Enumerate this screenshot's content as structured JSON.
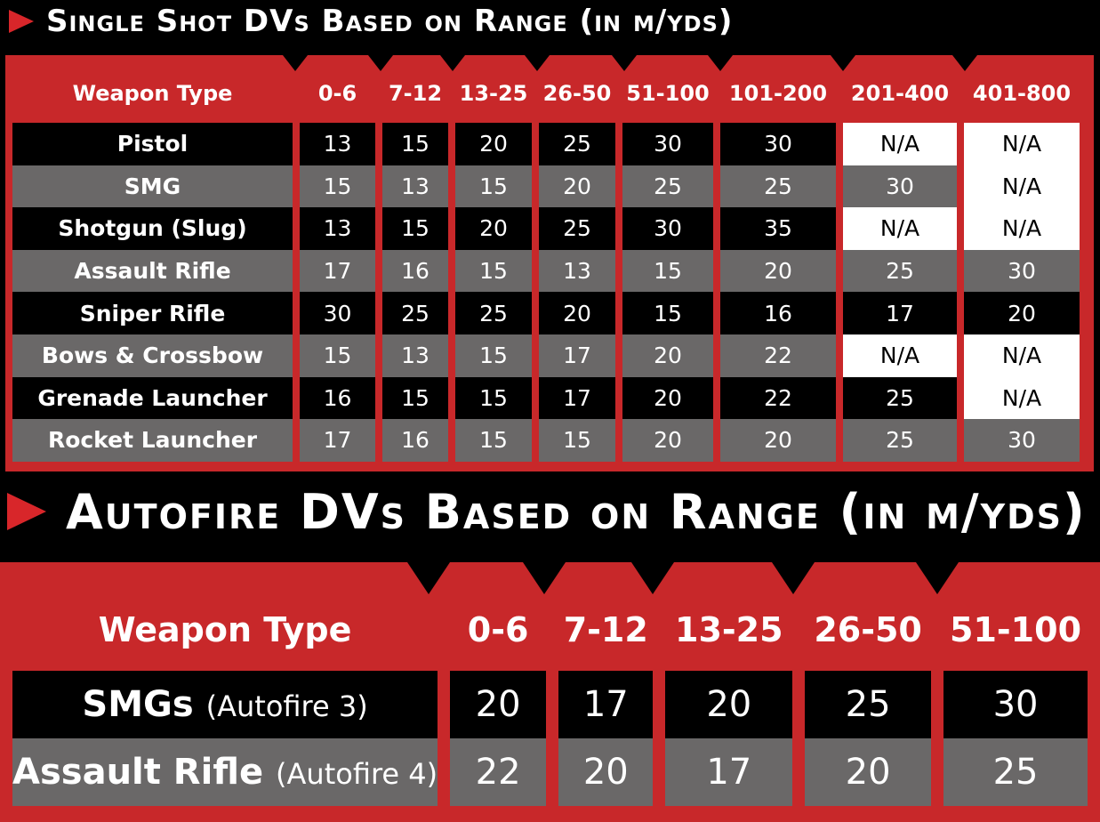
{
  "single_shot": {
    "title": "Single Shot DVs Based on Range (in m/yds)",
    "headers": [
      "Weapon Type",
      "0-6",
      "7-12",
      "13-25",
      "26-50",
      "51-100",
      "101-200",
      "201-400",
      "401-800"
    ],
    "rows": [
      {
        "weapon": "Pistol",
        "values": [
          "13",
          "15",
          "20",
          "25",
          "30",
          "30",
          "N/A",
          "N/A"
        ]
      },
      {
        "weapon": "SMG",
        "values": [
          "15",
          "13",
          "15",
          "20",
          "25",
          "25",
          "30",
          "N/A"
        ]
      },
      {
        "weapon": "Shotgun (Slug)",
        "values": [
          "13",
          "15",
          "20",
          "25",
          "30",
          "35",
          "N/A",
          "N/A"
        ]
      },
      {
        "weapon": "Assault Rifle",
        "values": [
          "17",
          "16",
          "15",
          "13",
          "15",
          "20",
          "25",
          "30"
        ]
      },
      {
        "weapon": "Sniper Rifle",
        "values": [
          "30",
          "25",
          "25",
          "20",
          "15",
          "16",
          "17",
          "20"
        ]
      },
      {
        "weapon": "Bows & Crossbow",
        "values": [
          "15",
          "13",
          "15",
          "17",
          "20",
          "22",
          "N/A",
          "N/A"
        ]
      },
      {
        "weapon": "Grenade Launcher",
        "values": [
          "16",
          "15",
          "15",
          "17",
          "20",
          "22",
          "25",
          "N/A"
        ]
      },
      {
        "weapon": "Rocket Launcher",
        "values": [
          "17",
          "16",
          "15",
          "15",
          "20",
          "20",
          "25",
          "30"
        ]
      }
    ]
  },
  "autofire": {
    "title": "Autofire DVs Based on Range (in m/yds)",
    "headers": [
      "Weapon Type",
      "0-6",
      "7-12",
      "13-25",
      "26-50",
      "51-100"
    ],
    "rows": [
      {
        "weapon": "SMGs",
        "note": "(Autofire 3)",
        "values": [
          "20",
          "17",
          "20",
          "25",
          "30"
        ]
      },
      {
        "weapon": "Assault Rifle",
        "note": "(Autofire 4)",
        "values": [
          "22",
          "20",
          "17",
          "20",
          "25"
        ]
      }
    ]
  },
  "colors": {
    "accent_red": "#d8262a",
    "panel_red": "#c8282a",
    "row_dark": "#000000",
    "row_gray": "#6a6868",
    "na_cell": "#ffffff"
  },
  "icons": [
    "play-arrow-icon"
  ]
}
